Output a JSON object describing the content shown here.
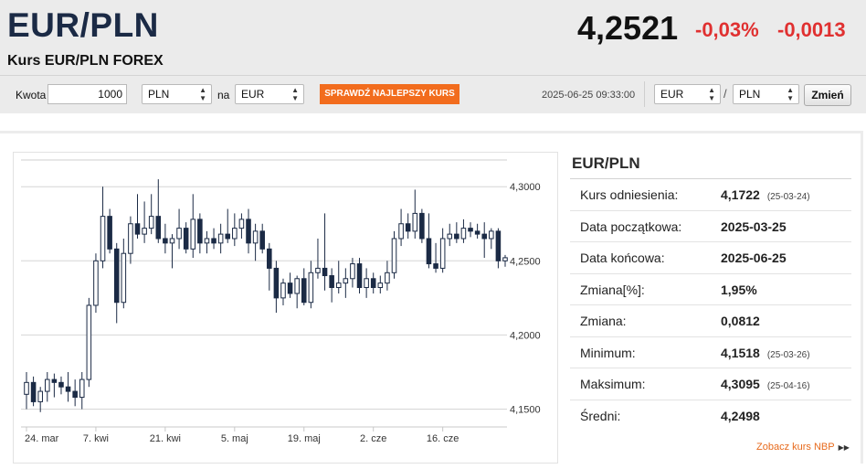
{
  "header": {
    "pair": "EUR/PLN",
    "subtitle": "Kurs EUR/PLN FOREX",
    "rate": "4,2521",
    "change_percent": "-0,03%",
    "change_abs": "-0,0013",
    "change_color": "#e03030"
  },
  "converter": {
    "amount_label": "Kwota",
    "amount_value": "1000",
    "from_currency": "PLN",
    "to_label": "na",
    "to_currency": "EUR",
    "best_rate_button": "SPRAWDŹ NAJLEPSZY KURS",
    "accent_color": "#f26c1d",
    "timestamp": "2025-06-25 09:33:00",
    "pair_base": "EUR",
    "pair_separator": "/",
    "pair_quote": "PLN",
    "change_button": "Zmień"
  },
  "stats": {
    "title": "EUR/PLN",
    "rows": [
      {
        "label": "Kurs odniesienia:",
        "value": "4,1722",
        "date": "(25-03-24)"
      },
      {
        "label": "Data początkowa:",
        "value": "2025-03-25",
        "date": ""
      },
      {
        "label": "Data końcowa:",
        "value": "2025-06-25",
        "date": ""
      },
      {
        "label": "Zmiana[%]:",
        "value": "1,95%",
        "date": ""
      },
      {
        "label": "Zmiana:",
        "value": "0,0812",
        "date": ""
      },
      {
        "label": "Minimum:",
        "value": "4,1518",
        "date": "(25-03-26)"
      },
      {
        "label": "Maksimum:",
        "value": "4,3095",
        "date": "(25-04-16)"
      },
      {
        "label": "Średni:",
        "value": "4,2498",
        "date": ""
      }
    ],
    "nbp_link": "Zobacz kurs NBP",
    "nbp_icon": "double-chevron-right-icon"
  },
  "chart_data": {
    "type": "candlestick",
    "title": "",
    "xlabel": "",
    "ylabel": "",
    "ylim": [
      4.138,
      4.318
    ],
    "y_ticks": [
      "4,3000",
      "4,2500",
      "4,2000",
      "4,1500"
    ],
    "y_tick_values": [
      4.3,
      4.25,
      4.2,
      4.15
    ],
    "x_ticks": [
      "24. mar",
      "7. kwi",
      "21. kwi",
      "5. maj",
      "19. maj",
      "2. cze",
      "16. cze"
    ],
    "x_tick_index": [
      0,
      10,
      20,
      30,
      40,
      50,
      60
    ],
    "grid": true,
    "up_color": "#ffffff",
    "down_color": "#1b2a45",
    "candles": [
      {
        "o": 4.16,
        "h": 4.175,
        "l": 4.15,
        "c": 4.168
      },
      {
        "o": 4.168,
        "h": 4.172,
        "l": 4.152,
        "c": 4.155
      },
      {
        "o": 4.155,
        "h": 4.165,
        "l": 4.148,
        "c": 4.162
      },
      {
        "o": 4.162,
        "h": 4.175,
        "l": 4.155,
        "c": 4.17
      },
      {
        "o": 4.17,
        "h": 4.174,
        "l": 4.158,
        "c": 4.168
      },
      {
        "o": 4.168,
        "h": 4.172,
        "l": 4.16,
        "c": 4.165
      },
      {
        "o": 4.165,
        "h": 4.175,
        "l": 4.155,
        "c": 4.162
      },
      {
        "o": 4.162,
        "h": 4.17,
        "l": 4.152,
        "c": 4.158
      },
      {
        "o": 4.158,
        "h": 4.175,
        "l": 4.15,
        "c": 4.17
      },
      {
        "o": 4.17,
        "h": 4.225,
        "l": 4.165,
        "c": 4.22
      },
      {
        "o": 4.22,
        "h": 4.255,
        "l": 4.215,
        "c": 4.25
      },
      {
        "o": 4.25,
        "h": 4.3,
        "l": 4.245,
        "c": 4.28
      },
      {
        "o": 4.28,
        "h": 4.285,
        "l": 4.255,
        "c": 4.258
      },
      {
        "o": 4.258,
        "h": 4.262,
        "l": 4.208,
        "c": 4.222
      },
      {
        "o": 4.222,
        "h": 4.265,
        "l": 4.218,
        "c": 4.255
      },
      {
        "o": 4.255,
        "h": 4.28,
        "l": 4.248,
        "c": 4.275
      },
      {
        "o": 4.275,
        "h": 4.295,
        "l": 4.265,
        "c": 4.268
      },
      {
        "o": 4.268,
        "h": 4.29,
        "l": 4.262,
        "c": 4.272
      },
      {
        "o": 4.272,
        "h": 4.295,
        "l": 4.268,
        "c": 4.28
      },
      {
        "o": 4.28,
        "h": 4.305,
        "l": 4.262,
        "c": 4.265
      },
      {
        "o": 4.265,
        "h": 4.275,
        "l": 4.255,
        "c": 4.262
      },
      {
        "o": 4.262,
        "h": 4.268,
        "l": 4.245,
        "c": 4.265
      },
      {
        "o": 4.265,
        "h": 4.285,
        "l": 4.258,
        "c": 4.272
      },
      {
        "o": 4.272,
        "h": 4.276,
        "l": 4.255,
        "c": 4.258
      },
      {
        "o": 4.258,
        "h": 4.295,
        "l": 4.252,
        "c": 4.278
      },
      {
        "o": 4.278,
        "h": 4.282,
        "l": 4.255,
        "c": 4.262
      },
      {
        "o": 4.262,
        "h": 4.27,
        "l": 4.255,
        "c": 4.265
      },
      {
        "o": 4.265,
        "h": 4.272,
        "l": 4.258,
        "c": 4.262
      },
      {
        "o": 4.262,
        "h": 4.275,
        "l": 4.255,
        "c": 4.268
      },
      {
        "o": 4.268,
        "h": 4.285,
        "l": 4.262,
        "c": 4.265
      },
      {
        "o": 4.265,
        "h": 4.282,
        "l": 4.26,
        "c": 4.272
      },
      {
        "o": 4.272,
        "h": 4.282,
        "l": 4.265,
        "c": 4.278
      },
      {
        "o": 4.278,
        "h": 4.285,
        "l": 4.255,
        "c": 4.262
      },
      {
        "o": 4.262,
        "h": 4.275,
        "l": 4.25,
        "c": 4.27
      },
      {
        "o": 4.27,
        "h": 4.275,
        "l": 4.255,
        "c": 4.258
      },
      {
        "o": 4.258,
        "h": 4.262,
        "l": 4.23,
        "c": 4.245
      },
      {
        "o": 4.245,
        "h": 4.25,
        "l": 4.215,
        "c": 4.225
      },
      {
        "o": 4.225,
        "h": 4.238,
        "l": 4.22,
        "c": 4.235
      },
      {
        "o": 4.235,
        "h": 4.242,
        "l": 4.225,
        "c": 4.228
      },
      {
        "o": 4.228,
        "h": 4.24,
        "l": 4.218,
        "c": 4.238
      },
      {
        "o": 4.238,
        "h": 4.245,
        "l": 4.22,
        "c": 4.222
      },
      {
        "o": 4.222,
        "h": 4.25,
        "l": 4.218,
        "c": 4.242
      },
      {
        "o": 4.242,
        "h": 4.265,
        "l": 4.238,
        "c": 4.245
      },
      {
        "o": 4.245,
        "h": 4.282,
        "l": 4.23,
        "c": 4.24
      },
      {
        "o": 4.24,
        "h": 4.245,
        "l": 4.222,
        "c": 4.232
      },
      {
        "o": 4.232,
        "h": 4.25,
        "l": 4.228,
        "c": 4.235
      },
      {
        "o": 4.235,
        "h": 4.245,
        "l": 4.225,
        "c": 4.238
      },
      {
        "o": 4.238,
        "h": 4.252,
        "l": 4.232,
        "c": 4.248
      },
      {
        "o": 4.248,
        "h": 4.252,
        "l": 4.228,
        "c": 4.232
      },
      {
        "o": 4.232,
        "h": 4.245,
        "l": 4.225,
        "c": 4.238
      },
      {
        "o": 4.238,
        "h": 4.242,
        "l": 4.228,
        "c": 4.232
      },
      {
        "o": 4.232,
        "h": 4.24,
        "l": 4.228,
        "c": 4.235
      },
      {
        "o": 4.235,
        "h": 4.25,
        "l": 4.23,
        "c": 4.242
      },
      {
        "o": 4.242,
        "h": 4.27,
        "l": 4.238,
        "c": 4.265
      },
      {
        "o": 4.265,
        "h": 4.285,
        "l": 4.26,
        "c": 4.275
      },
      {
        "o": 4.275,
        "h": 4.282,
        "l": 4.265,
        "c": 4.27
      },
      {
        "o": 4.27,
        "h": 4.298,
        "l": 4.265,
        "c": 4.282
      },
      {
        "o": 4.282,
        "h": 4.285,
        "l": 4.262,
        "c": 4.265
      },
      {
        "o": 4.265,
        "h": 4.282,
        "l": 4.245,
        "c": 4.248
      },
      {
        "o": 4.248,
        "h": 4.262,
        "l": 4.242,
        "c": 4.245
      },
      {
        "o": 4.245,
        "h": 4.272,
        "l": 4.242,
        "c": 4.265
      },
      {
        "o": 4.265,
        "h": 4.275,
        "l": 4.26,
        "c": 4.268
      },
      {
        "o": 4.268,
        "h": 4.276,
        "l": 4.262,
        "c": 4.265
      },
      {
        "o": 4.265,
        "h": 4.278,
        "l": 4.262,
        "c": 4.272
      },
      {
        "o": 4.272,
        "h": 4.276,
        "l": 4.266,
        "c": 4.27
      },
      {
        "o": 4.27,
        "h": 4.275,
        "l": 4.265,
        "c": 4.268
      },
      {
        "o": 4.268,
        "h": 4.276,
        "l": 4.252,
        "c": 4.265
      },
      {
        "o": 4.265,
        "h": 4.272,
        "l": 4.258,
        "c": 4.27
      },
      {
        "o": 4.27,
        "h": 4.272,
        "l": 4.245,
        "c": 4.25
      },
      {
        "o": 4.25,
        "h": 4.254,
        "l": 4.246,
        "c": 4.2521
      }
    ]
  }
}
